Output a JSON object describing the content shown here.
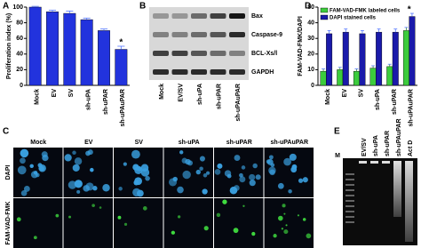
{
  "panel_labels": [
    "A",
    "B",
    "C",
    "D",
    "E"
  ],
  "chart_data": [
    {
      "type": "bar",
      "y_label": "Proliferation index (%)",
      "categories": [
        "Mock",
        "EV",
        "SV",
        "sh-uPA",
        "sh-uPAR",
        "sh-uPAuPAR"
      ],
      "values": [
        100,
        94,
        92,
        84,
        70,
        46
      ],
      "errors": [
        1,
        2,
        3,
        2,
        2,
        4
      ],
      "color": "#2233dd",
      "ylim": [
        0,
        100
      ],
      "yticks": [
        0,
        20,
        40,
        60,
        80,
        100
      ],
      "annotation": "*"
    },
    {
      "type": "bar",
      "y_label": "FAM-VAD-FMK/DAPI",
      "categories": [
        "Mock",
        "EV",
        "SV",
        "sh-uPA",
        "sh-uPAR",
        "sh-uPAuPAR"
      ],
      "series": [
        {
          "name": "FAM-VAD-FMK labeled cells",
          "color": "#3ccc3c",
          "values": [
            9,
            10,
            9,
            11,
            12,
            35
          ],
          "errors": [
            1.5,
            1.5,
            1.5,
            1.5,
            1.5,
            2
          ]
        },
        {
          "name": "DAPI stained cells",
          "color": "#1a1aaa",
          "values": [
            33,
            34,
            33,
            34,
            34,
            44
          ],
          "errors": [
            2,
            2,
            2,
            2,
            2,
            2
          ]
        }
      ],
      "ylim": [
        0,
        50
      ],
      "yticks": [
        0,
        10,
        20,
        30,
        40,
        50
      ],
      "legend": "top-left",
      "annotation": "*"
    }
  ],
  "blot": {
    "bands": [
      "Bax",
      "Caspase-9",
      "BCL-Xs/l",
      "GAPDH"
    ],
    "lanes": [
      "Mock",
      "EV/SV",
      "sh-uPA",
      "sh-uPAR",
      "sh-uPAuPAR"
    ]
  },
  "microscopy": {
    "columns": [
      "Mock",
      "EV",
      "SV",
      "sh-uPA",
      "sh-uPAR",
      "sh-uPAuPAR"
    ],
    "rows": [
      "DAPI",
      "FAM-VAD-FMK"
    ]
  },
  "gel": {
    "marker": "M",
    "lanes": [
      "EV/SV",
      "sh-uPA",
      "sh-uPAR",
      "sh-uPAuPAR",
      "Act D"
    ]
  }
}
